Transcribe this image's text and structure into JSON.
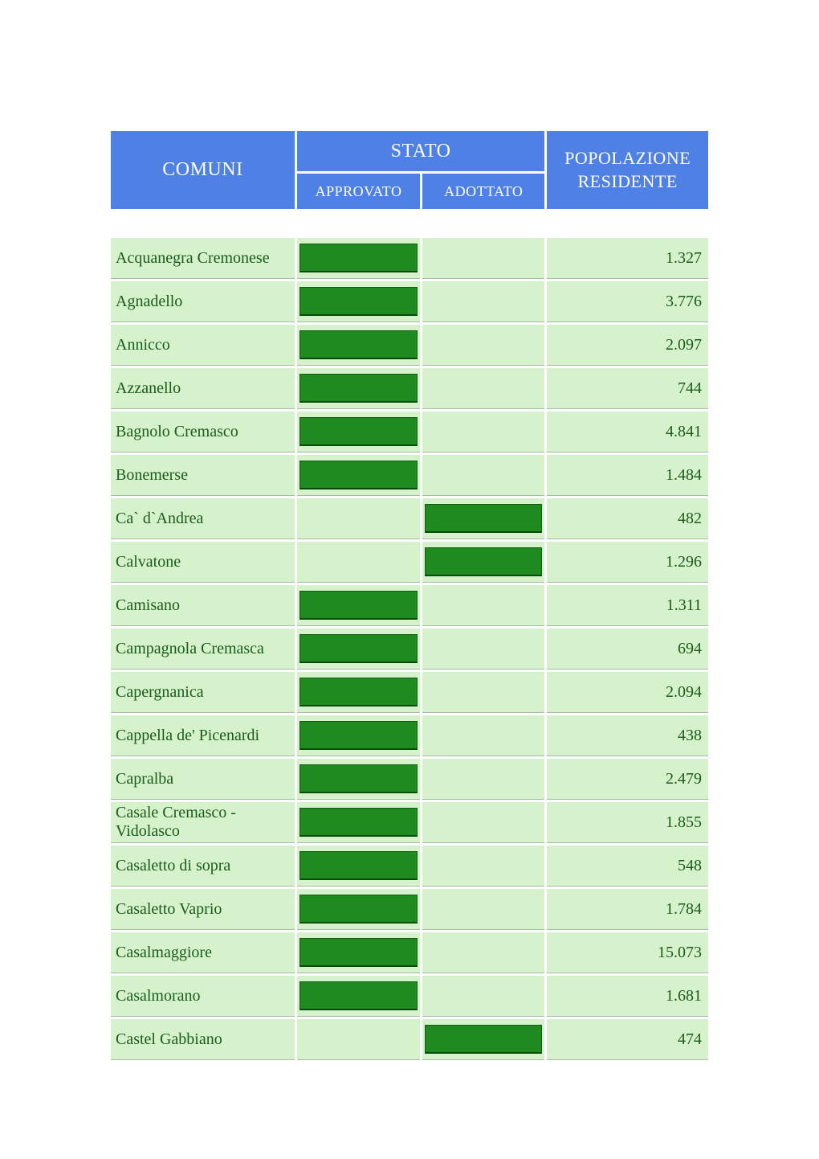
{
  "header": {
    "comuni": "COMUNI",
    "stato": "STATO",
    "approvato": "APPROVATO",
    "adottato": "ADOTTATO",
    "pop1": "POPOLAZIONE",
    "pop2": "RESIDENTE"
  },
  "colors": {
    "header_bg": "#4f81e5",
    "header_text": "#ffffff",
    "row_bg": "#d6f2cd",
    "row_text": "#1a5b1a",
    "marker_bg": "#1f8a1f",
    "marker_border": "#0f5f0f",
    "row_underline": "#a4bda0"
  },
  "table": {
    "type": "table",
    "columns": [
      "COMUNI",
      "APPROVATO",
      "ADOTTATO",
      "POPOLAZIONE RESIDENTE"
    ],
    "rows": [
      {
        "name": "Acquanegra Cremonese",
        "approvato": true,
        "adottato": false,
        "pop": "1.327"
      },
      {
        "name": "Agnadello",
        "approvato": true,
        "adottato": false,
        "pop": "3.776"
      },
      {
        "name": "Annicco",
        "approvato": true,
        "adottato": false,
        "pop": "2.097"
      },
      {
        "name": "Azzanello",
        "approvato": true,
        "adottato": false,
        "pop": "744"
      },
      {
        "name": "Bagnolo Cremasco",
        "approvato": true,
        "adottato": false,
        "pop": "4.841"
      },
      {
        "name": "Bonemerse",
        "approvato": true,
        "adottato": false,
        "pop": "1.484"
      },
      {
        "name": "Ca` d`Andrea",
        "approvato": false,
        "adottato": true,
        "pop": "482"
      },
      {
        "name": "Calvatone",
        "approvato": false,
        "adottato": true,
        "pop": "1.296"
      },
      {
        "name": "Camisano",
        "approvato": true,
        "adottato": false,
        "pop": "1.311"
      },
      {
        "name": "Campagnola Cremasca",
        "approvato": true,
        "adottato": false,
        "pop": "694"
      },
      {
        "name": "Capergnanica",
        "approvato": true,
        "adottato": false,
        "pop": "2.094"
      },
      {
        "name": "Cappella de' Picenardi",
        "approvato": true,
        "adottato": false,
        "pop": "438"
      },
      {
        "name": "Capralba",
        "approvato": true,
        "adottato": false,
        "pop": "2.479"
      },
      {
        "name": "Casale Cremasco - Vidolasco",
        "approvato": true,
        "adottato": false,
        "pop": "1.855"
      },
      {
        "name": "Casaletto di sopra",
        "approvato": true,
        "adottato": false,
        "pop": "548"
      },
      {
        "name": "Casaletto Vaprio",
        "approvato": true,
        "adottato": false,
        "pop": "1.784"
      },
      {
        "name": "Casalmaggiore",
        "approvato": true,
        "adottato": false,
        "pop": "15.073"
      },
      {
        "name": "Casalmorano",
        "approvato": true,
        "adottato": false,
        "pop": "1.681"
      },
      {
        "name": "Castel Gabbiano",
        "approvato": false,
        "adottato": true,
        "pop": "474"
      }
    ]
  }
}
